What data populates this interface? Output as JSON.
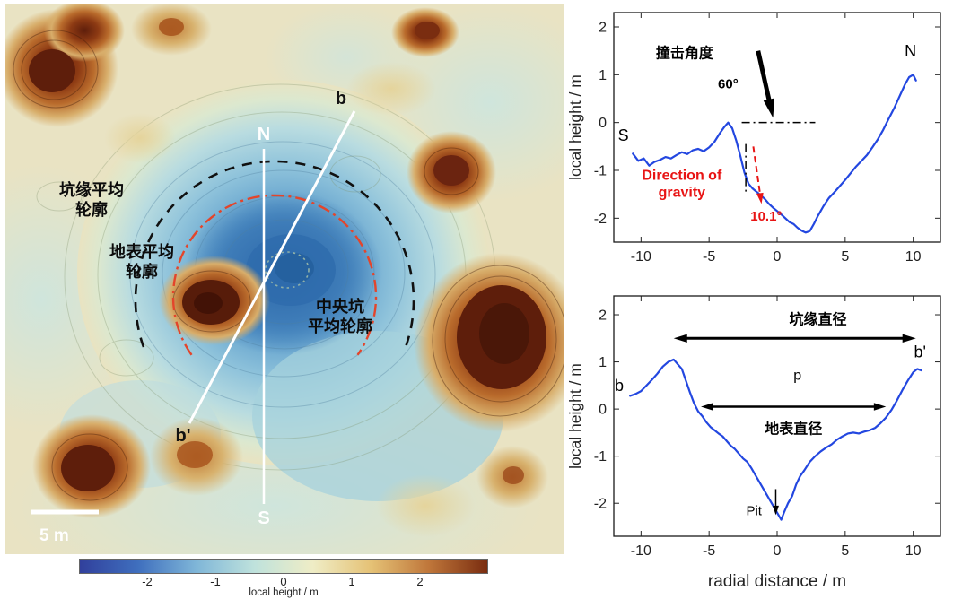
{
  "map": {
    "labels": {
      "rim_line1": "坑缘平均",
      "rim_line2": "轮廓",
      "surface_line1": "地表平均",
      "surface_line2": "轮廓",
      "pit_line1": "中央坑",
      "pit_line2": "平均轮廓",
      "north": "N",
      "south": "S",
      "b_start": "b",
      "b_end": "b'",
      "scalebar": "5 m"
    },
    "colorbar": {
      "ticks": [
        "-2",
        "-1",
        "0",
        "1",
        "2"
      ],
      "label": "local height / m",
      "gradient": [
        "#31409C",
        "#3F6FBE",
        "#7FB6D8",
        "#BFE2DC",
        "#EFEDC6",
        "#E5C276",
        "#BF763A",
        "#7A2D10"
      ]
    }
  },
  "chart_data": [
    {
      "type": "line",
      "title": "",
      "xlabel": "",
      "ylabel": "local height / m",
      "xlim": [
        -12,
        12
      ],
      "ylim": [
        -2.5,
        2.3
      ],
      "xticks": [
        -10,
        -5,
        0,
        5,
        10
      ],
      "yticks": [
        -2,
        -1,
        0,
        1,
        2
      ],
      "line_color": "#2347E0",
      "grid": false,
      "legend": "none",
      "series": [
        {
          "name": "S-N elevation profile",
          "x": [
            -10.6,
            -10.2,
            -9.8,
            -9.4,
            -9.0,
            -8.6,
            -8.2,
            -7.8,
            -7.4,
            -7.0,
            -6.6,
            -6.2,
            -5.8,
            -5.4,
            -5.0,
            -4.6,
            -4.2,
            -3.9,
            -3.6,
            -3.3,
            -3.0,
            -2.7,
            -2.4,
            -2.1,
            -1.8,
            -1.5,
            -1.2,
            -0.9,
            -0.6,
            -0.3,
            0,
            0.3,
            0.6,
            0.9,
            1.2,
            1.5,
            1.8,
            2.1,
            2.4,
            2.7,
            3.0,
            3.4,
            3.8,
            4.2,
            4.6,
            5.0,
            5.4,
            5.8,
            6.2,
            6.6,
            7.0,
            7.4,
            7.8,
            8.2,
            8.6,
            9.0,
            9.4,
            9.7,
            10.0,
            10.2
          ],
          "y": [
            -0.65,
            -0.8,
            -0.75,
            -0.9,
            -0.82,
            -0.78,
            -0.72,
            -0.75,
            -0.68,
            -0.62,
            -0.66,
            -0.58,
            -0.55,
            -0.6,
            -0.52,
            -0.4,
            -0.22,
            -0.1,
            0.0,
            -0.12,
            -0.38,
            -0.7,
            -1.05,
            -1.28,
            -1.38,
            -1.45,
            -1.52,
            -1.6,
            -1.7,
            -1.78,
            -1.85,
            -1.92,
            -2.0,
            -2.08,
            -2.12,
            -2.2,
            -2.26,
            -2.3,
            -2.27,
            -2.12,
            -1.95,
            -1.75,
            -1.58,
            -1.46,
            -1.33,
            -1.2,
            -1.06,
            -0.92,
            -0.8,
            -0.68,
            -0.52,
            -0.35,
            -0.15,
            0.08,
            0.3,
            0.55,
            0.8,
            0.95,
            1.0,
            0.88
          ]
        }
      ],
      "annotations": [
        {
          "type": "text",
          "lines": [
            "撞击角度"
          ],
          "x": -6.8,
          "y": 1.35,
          "color": "#000000",
          "size": 16,
          "bold": true
        },
        {
          "type": "text",
          "lines": [
            "60°"
          ],
          "x": -3.6,
          "y": 0.72,
          "color": "#000000",
          "size": 15,
          "bold": true
        },
        {
          "type": "arrow",
          "x1": -1.4,
          "y1": 1.5,
          "x2": -0.3,
          "y2": 0.1,
          "color": "#000000",
          "width": 5
        },
        {
          "type": "line",
          "x1": -2.6,
          "y1": 0,
          "x2": 2.8,
          "y2": 0,
          "color": "#000000",
          "width": 1.5,
          "dash": "9 4 2 4"
        },
        {
          "type": "line",
          "x1": -2.3,
          "y1": -0.45,
          "x2": -2.3,
          "y2": -1.45,
          "color": "#000000",
          "width": 1.5,
          "dash": "9 4 2 4"
        },
        {
          "type": "arrow",
          "x1": -1.75,
          "y1": -0.5,
          "x2": -1.15,
          "y2": -1.7,
          "color": "#e81414",
          "width": 2,
          "dash": "7 4"
        },
        {
          "type": "text",
          "lines": [
            "Direction of",
            "gravity"
          ],
          "x": -7.0,
          "y": -1.2,
          "color": "#e81414",
          "size": 16,
          "bold": true
        },
        {
          "type": "text",
          "lines": [
            "10.1°"
          ],
          "x": -0.8,
          "y": -2.05,
          "color": "#e81414",
          "size": 15,
          "bold": true
        },
        {
          "type": "text",
          "lines": [
            "S"
          ],
          "x": -11.3,
          "y": -0.38,
          "color": "#000000",
          "size": 18,
          "bold": false
        },
        {
          "type": "text",
          "lines": [
            "N"
          ],
          "x": 9.8,
          "y": 1.38,
          "color": "#000000",
          "size": 18,
          "bold": false
        }
      ]
    },
    {
      "type": "line",
      "title": "",
      "xlabel": "radial distance / m",
      "ylabel": "local height / m",
      "xlim": [
        -12,
        12
      ],
      "ylim": [
        -2.7,
        2.4
      ],
      "xticks": [
        -10,
        -5,
        0,
        5,
        10
      ],
      "yticks": [
        -2,
        -1,
        0,
        1,
        2
      ],
      "line_color": "#2347E0",
      "grid": false,
      "legend": "none",
      "series": [
        {
          "name": "b-b' elevation profile",
          "x": [
            -10.8,
            -10.4,
            -10.0,
            -9.6,
            -9.2,
            -8.8,
            -8.4,
            -8.0,
            -7.6,
            -7.3,
            -7.0,
            -6.7,
            -6.4,
            -6.1,
            -5.8,
            -5.5,
            -5.2,
            -4.9,
            -4.6,
            -4.3,
            -4.0,
            -3.7,
            -3.4,
            -3.1,
            -2.8,
            -2.5,
            -2.2,
            -1.9,
            -1.6,
            -1.3,
            -1.0,
            -0.7,
            -0.4,
            -0.1,
            0.1,
            0.3,
            0.5,
            0.8,
            1.1,
            1.4,
            1.7,
            2.0,
            2.4,
            2.8,
            3.2,
            3.6,
            4.0,
            4.4,
            4.8,
            5.2,
            5.6,
            6.0,
            6.4,
            6.8,
            7.2,
            7.6,
            8.0,
            8.4,
            8.8,
            9.2,
            9.6,
            10.0,
            10.3,
            10.6
          ],
          "y": [
            0.28,
            0.32,
            0.38,
            0.5,
            0.62,
            0.75,
            0.9,
            1.0,
            1.05,
            0.95,
            0.85,
            0.6,
            0.35,
            0.12,
            -0.05,
            -0.15,
            -0.28,
            -0.38,
            -0.45,
            -0.52,
            -0.58,
            -0.68,
            -0.78,
            -0.85,
            -0.95,
            -1.05,
            -1.12,
            -1.25,
            -1.4,
            -1.55,
            -1.7,
            -1.85,
            -2.0,
            -2.15,
            -2.25,
            -2.35,
            -2.2,
            -2.0,
            -1.85,
            -1.6,
            -1.42,
            -1.3,
            -1.12,
            -1.0,
            -0.9,
            -0.82,
            -0.75,
            -0.65,
            -0.58,
            -0.52,
            -0.5,
            -0.52,
            -0.48,
            -0.45,
            -0.4,
            -0.3,
            -0.18,
            -0.02,
            0.18,
            0.4,
            0.6,
            0.78,
            0.85,
            0.82
          ]
        }
      ],
      "annotations": [
        {
          "type": "text",
          "lines": [
            "坑缘直径"
          ],
          "x": 3.0,
          "y": 1.8,
          "color": "#000000",
          "size": 16,
          "bold": true
        },
        {
          "type": "dblarrow",
          "x1": -7.6,
          "y1": 1.5,
          "x2": 10.2,
          "y2": 1.5,
          "color": "#000000",
          "width": 3
        },
        {
          "type": "text",
          "lines": [
            "p"
          ],
          "x": 1.5,
          "y": 0.62,
          "color": "#000000",
          "size": 16,
          "bold": false
        },
        {
          "type": "dblarrow",
          "x1": -5.6,
          "y1": 0.05,
          "x2": 8.0,
          "y2": 0.05,
          "color": "#000000",
          "width": 2.5
        },
        {
          "type": "text",
          "lines": [
            "地表直径"
          ],
          "x": 1.2,
          "y": -0.52,
          "color": "#000000",
          "size": 16,
          "bold": true
        },
        {
          "type": "text",
          "lines": [
            "Pit"
          ],
          "x": -1.7,
          "y": -2.25,
          "color": "#000000",
          "size": 15,
          "bold": false
        },
        {
          "type": "arrow",
          "x1": -0.1,
          "y1": -1.7,
          "x2": -0.1,
          "y2": -2.25,
          "color": "#000000",
          "width": 1.5
        },
        {
          "type": "text",
          "lines": [
            "b"
          ],
          "x": -11.6,
          "y": 0.38,
          "color": "#000000",
          "size": 18,
          "bold": false
        },
        {
          "type": "text",
          "lines": [
            "b'"
          ],
          "x": 10.5,
          "y": 1.1,
          "color": "#000000",
          "size": 18,
          "bold": false
        }
      ]
    }
  ]
}
